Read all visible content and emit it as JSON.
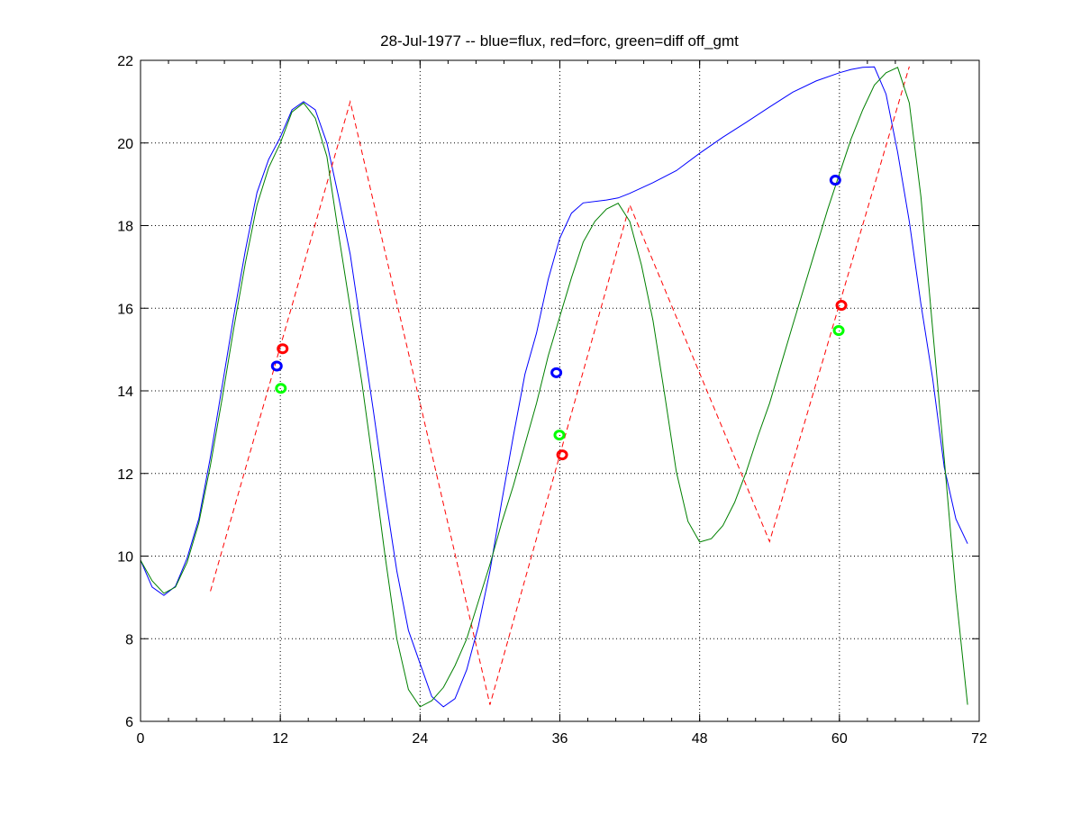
{
  "chart_data": {
    "type": "line",
    "title": "28-Jul-1977 -- blue=flux, red=forc, green=diff off_gmt",
    "xlabel": "",
    "ylabel": "",
    "xlim": [
      0,
      72
    ],
    "ylim": [
      6,
      22
    ],
    "xticks": [
      0,
      12,
      24,
      36,
      48,
      60,
      72
    ],
    "yticks": [
      6,
      8,
      10,
      12,
      14,
      16,
      18,
      20,
      22
    ],
    "xtick_labels": [
      "0",
      "12",
      "24",
      "36",
      "48",
      "60",
      "72"
    ],
    "ytick_labels": [
      "6",
      "8",
      "10",
      "12",
      "14",
      "16",
      "18",
      "20",
      "22"
    ],
    "grid": true,
    "series": [
      {
        "color": "#0000ff",
        "style": "solid",
        "x": [
          0,
          1,
          2,
          3,
          4,
          5,
          6,
          7,
          8,
          9,
          10,
          11,
          12,
          13,
          14,
          15,
          16,
          17,
          18,
          19,
          20,
          21,
          22,
          23,
          24,
          25,
          26,
          27,
          28,
          29,
          30,
          31,
          32,
          33,
          34,
          35,
          36,
          37,
          38,
          40,
          41,
          42,
          44,
          46,
          48,
          50,
          52,
          54,
          56,
          58,
          60,
          61,
          62,
          63,
          64,
          65,
          66,
          67,
          68,
          69,
          70,
          71
        ],
        "y": [
          9.9,
          9.25,
          9.05,
          9.27,
          9.95,
          10.9,
          12.4,
          14.1,
          15.8,
          17.4,
          18.8,
          19.6,
          20.14,
          20.8,
          21.0,
          20.8,
          20.0,
          18.7,
          17.3,
          15.4,
          13.5,
          11.5,
          9.64,
          8.2,
          7.4,
          6.6,
          6.35,
          6.55,
          7.25,
          8.3,
          9.64,
          11.3,
          12.9,
          14.4,
          15.4,
          16.7,
          17.7,
          18.3,
          18.55,
          18.62,
          18.67,
          18.78,
          19.04,
          19.33,
          19.75,
          20.14,
          20.5,
          20.87,
          21.23,
          21.5,
          21.7,
          21.78,
          21.83,
          21.84,
          21.18,
          19.77,
          18.1,
          16.1,
          14.3,
          12.15,
          10.9,
          10.3
        ]
      },
      {
        "color": "#ff0000",
        "style": "dashed",
        "x": [
          6,
          18,
          30,
          42,
          54,
          66
        ],
        "y": [
          9.15,
          21.0,
          6.4,
          18.5,
          10.35,
          21.85
        ]
      },
      {
        "color": "#008000",
        "style": "solid",
        "x": [
          0,
          1,
          2,
          3,
          4,
          5,
          6,
          7,
          8,
          9,
          10,
          11,
          12,
          13,
          14,
          15,
          16,
          17,
          18,
          19,
          20,
          21,
          22,
          23,
          24,
          25,
          26,
          27,
          28,
          29,
          30,
          31,
          32,
          33,
          34,
          35,
          36,
          37,
          38,
          39,
          40,
          41,
          42,
          43,
          44,
          45,
          46,
          47,
          48,
          49,
          50,
          51,
          52,
          53,
          54,
          55,
          56,
          57,
          58,
          59,
          60,
          61,
          62,
          63,
          64,
          65,
          66,
          67,
          68,
          69,
          70,
          71
        ],
        "y": [
          9.9,
          9.4,
          9.1,
          9.25,
          9.85,
          10.8,
          12.2,
          13.8,
          15.5,
          17.1,
          18.5,
          19.4,
          20.0,
          20.75,
          20.97,
          20.6,
          19.67,
          17.8,
          16.0,
          14.2,
          12.15,
          10.0,
          8.0,
          6.77,
          6.35,
          6.5,
          6.82,
          7.35,
          8.0,
          8.9,
          9.8,
          10.8,
          11.7,
          12.7,
          13.7,
          14.85,
          15.8,
          16.74,
          17.6,
          18.1,
          18.4,
          18.54,
          18.1,
          17.05,
          15.7,
          13.9,
          12.04,
          10.84,
          10.34,
          10.42,
          10.74,
          11.3,
          12.04,
          12.9,
          13.7,
          14.65,
          15.6,
          16.53,
          17.47,
          18.4,
          19.25,
          20.1,
          20.8,
          21.4,
          21.7,
          21.83,
          20.97,
          18.7,
          15.5,
          12.35,
          9.1,
          6.4
        ]
      }
    ],
    "markers": [
      {
        "color": "#0000ff",
        "shape": "circle",
        "x": 11.7,
        "y": 14.6
      },
      {
        "color": "#ff0000",
        "shape": "circle",
        "x": 12.2,
        "y": 15.02
      },
      {
        "color": "#00ff00",
        "shape": "circle",
        "x": 12.05,
        "y": 14.06
      },
      {
        "color": "#0000ff",
        "shape": "circle",
        "x": 35.7,
        "y": 14.44
      },
      {
        "color": "#00ff00",
        "shape": "circle",
        "x": 35.96,
        "y": 12.93
      },
      {
        "color": "#ff0000",
        "shape": "circle",
        "x": 36.2,
        "y": 12.45
      },
      {
        "color": "#0000ff",
        "shape": "circle",
        "x": 59.65,
        "y": 19.1
      },
      {
        "color": "#ff0000",
        "shape": "circle",
        "x": 60.17,
        "y": 16.07
      },
      {
        "color": "#00ff00",
        "shape": "circle",
        "x": 59.94,
        "y": 15.46
      }
    ]
  }
}
